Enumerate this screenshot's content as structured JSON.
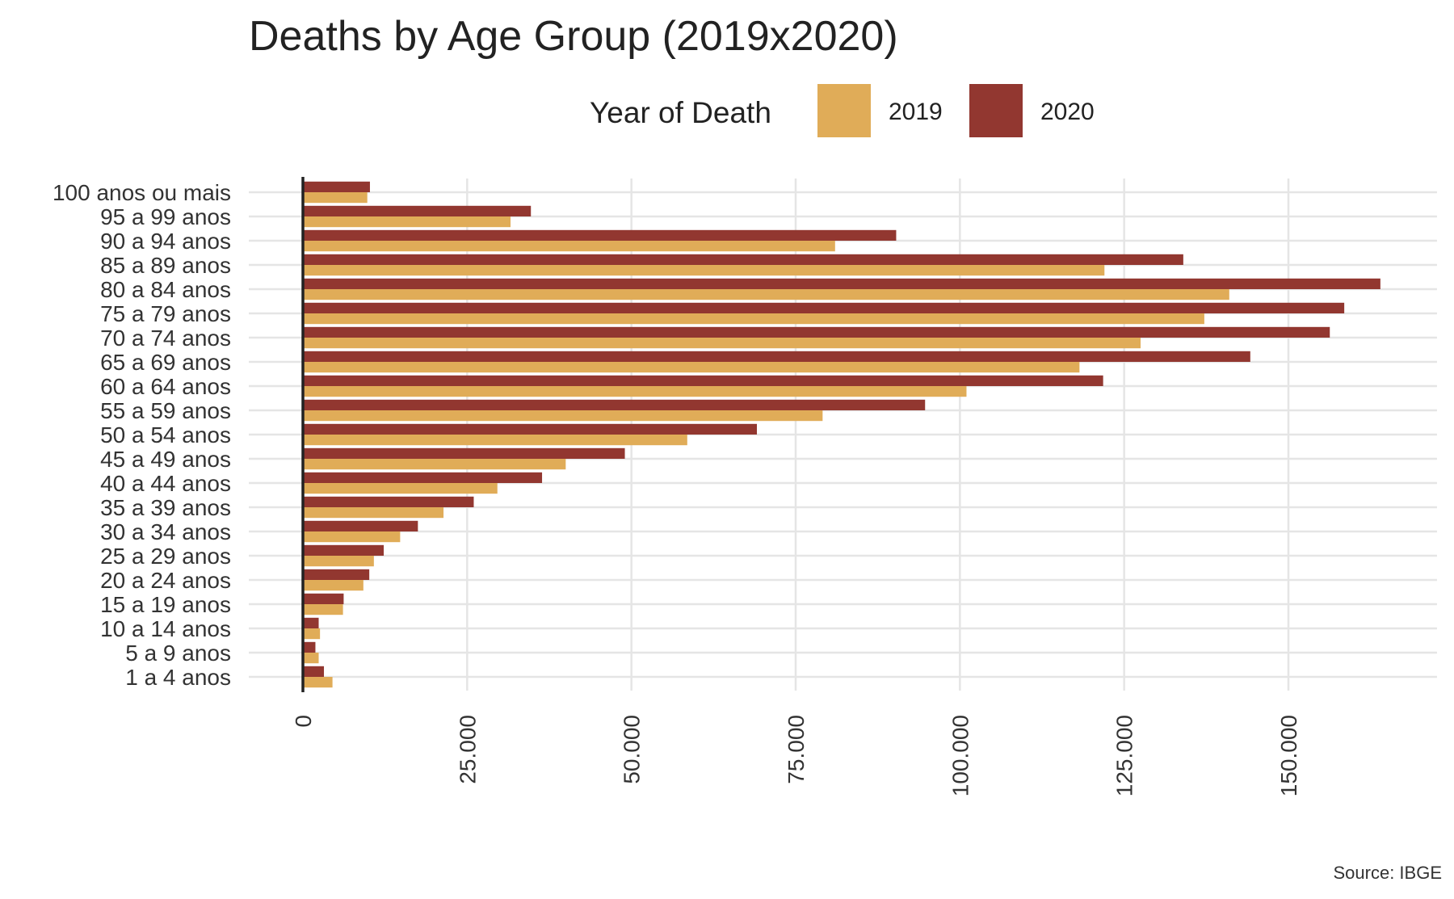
{
  "chart_data": {
    "type": "bar",
    "orientation": "horizontal",
    "title": "Deaths by Age Group (2019x2020)",
    "xlabel": "",
    "ylabel": "",
    "caption": "Source: IBGE",
    "legend": {
      "title": "Year of Death",
      "placement": "top"
    },
    "xlim": [
      0,
      172000
    ],
    "ticks": [
      {
        "value": 0,
        "label": "0"
      },
      {
        "value": 25000,
        "label": "25.000"
      },
      {
        "value": 50000,
        "label": "50.000"
      },
      {
        "value": 75000,
        "label": "75.000"
      },
      {
        "value": 100000,
        "label": "100.000"
      },
      {
        "value": 125000,
        "label": "125.000"
      },
      {
        "value": 150000,
        "label": "150.000"
      }
    ],
    "grid": true,
    "categories": [
      "100 anos ou mais",
      "95 a 99 anos",
      "90 a 94 anos",
      "85 a 89 anos",
      "80 a 84 anos",
      "75 a 79 anos",
      "70 a 74 anos",
      "65 a 69 anos",
      "60 a 64 anos",
      "55 a 59 anos",
      "50 a 54 anos",
      "45 a 49 anos",
      "40 a 44 anos",
      "35 a 39 anos",
      "30 a 34 anos",
      "25 a 29 anos",
      "20 a 24 anos",
      "15 a 19 anos",
      "10 a 14 anos",
      "5 a 9 anos",
      "1 a 4 anos"
    ],
    "series": [
      {
        "name": "2019",
        "color": "#E0AC58",
        "values": [
          9800,
          31600,
          81000,
          122000,
          141000,
          137200,
          127500,
          118200,
          101000,
          79100,
          58500,
          40000,
          29600,
          21400,
          14800,
          10800,
          9200,
          6100,
          2600,
          2400,
          4500
        ]
      },
      {
        "name": "2020",
        "color": "#923730",
        "values": [
          10200,
          34700,
          90300,
          134000,
          164000,
          158500,
          156300,
          144200,
          121800,
          94700,
          69100,
          49000,
          36400,
          26000,
          17500,
          12300,
          10100,
          6200,
          2400,
          1900,
          3200
        ]
      }
    ]
  }
}
